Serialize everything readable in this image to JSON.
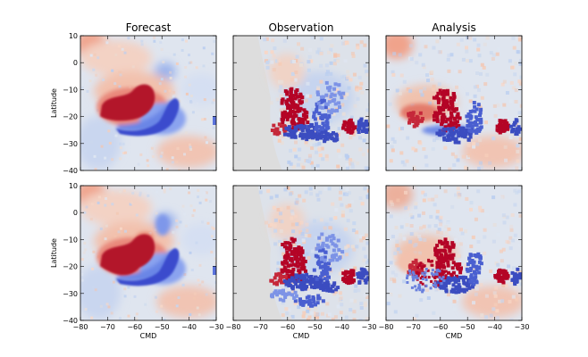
{
  "chart_data": {
    "type": "heatmap",
    "layout": "2 rows x 3 columns",
    "colormap": "coolwarm",
    "columns": [
      "Forecast",
      "Observation",
      "Analysis"
    ],
    "xlabel": "CMD",
    "ylabel": "Latitude",
    "xlim": [
      -80,
      -30
    ],
    "ylim": [
      -40,
      10
    ],
    "xticks": [
      "−80",
      "−70",
      "−60",
      "−50",
      "−40",
      "−30"
    ],
    "yticks": [
      "10",
      "0",
      "−10",
      "−20",
      "−30",
      "−40"
    ],
    "observation_no_data_region": {
      "x_min": -80,
      "x_boundary_top": -71,
      "x_boundary_bottom": -62,
      "description": "grey fill, no observations"
    },
    "features": [
      {
        "name": "warm anomaly core",
        "sign": "positive",
        "center": [
          -62,
          -18
        ],
        "present_in": [
          "Forecast",
          "Observation",
          "Analysis"
        ]
      },
      {
        "name": "cold anomaly band",
        "sign": "negative",
        "center": [
          -50,
          -22
        ],
        "present_in": [
          "Forecast",
          "Observation",
          "Analysis"
        ]
      },
      {
        "name": "secondary warm spot",
        "sign": "positive",
        "center": [
          -37,
          -24
        ],
        "present_in": [
          "Observation",
          "Analysis"
        ]
      }
    ]
  }
}
